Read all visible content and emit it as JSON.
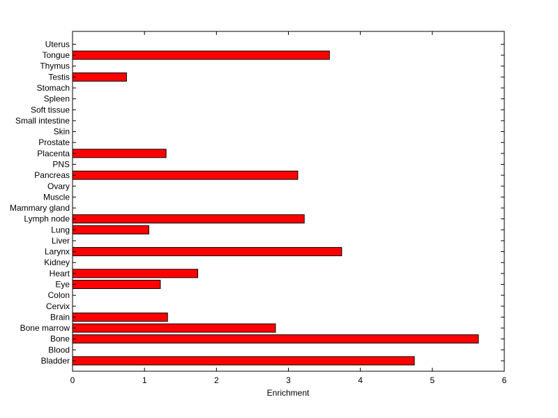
{
  "chart_data": {
    "type": "bar",
    "orientation": "horizontal",
    "title": "",
    "xlabel": "Enrichment",
    "ylabel": "",
    "xlim": [
      0,
      6
    ],
    "xticks": [
      "0",
      "1",
      "2",
      "3",
      "4",
      "5",
      "6"
    ],
    "grid": false,
    "bar_color": "#ff0000",
    "bar_edge_color": "#000000",
    "categories": [
      "Bladder",
      "Blood",
      "Bone",
      "Bone marrow",
      "Brain",
      "Cervix",
      "Colon",
      "Eye",
      "Heart",
      "Kidney",
      "Larynx",
      "Liver",
      "Lung",
      "Lymph node",
      "Mammary gland",
      "Muscle",
      "Ovary",
      "Pancreas",
      "PNS",
      "Placenta",
      "Prostate",
      "Skin",
      "Small intestine",
      "Soft tissue",
      "Spleen",
      "Stomach",
      "Testis",
      "Thymus",
      "Tongue",
      "Uterus"
    ],
    "values": [
      4.75,
      0,
      5.64,
      2.82,
      1.32,
      0,
      0,
      1.22,
      1.74,
      0,
      3.74,
      0,
      1.06,
      3.22,
      0,
      0,
      0,
      3.13,
      0,
      1.3,
      0,
      0,
      0,
      0,
      0,
      0,
      0.75,
      0,
      3.57,
      0
    ]
  }
}
